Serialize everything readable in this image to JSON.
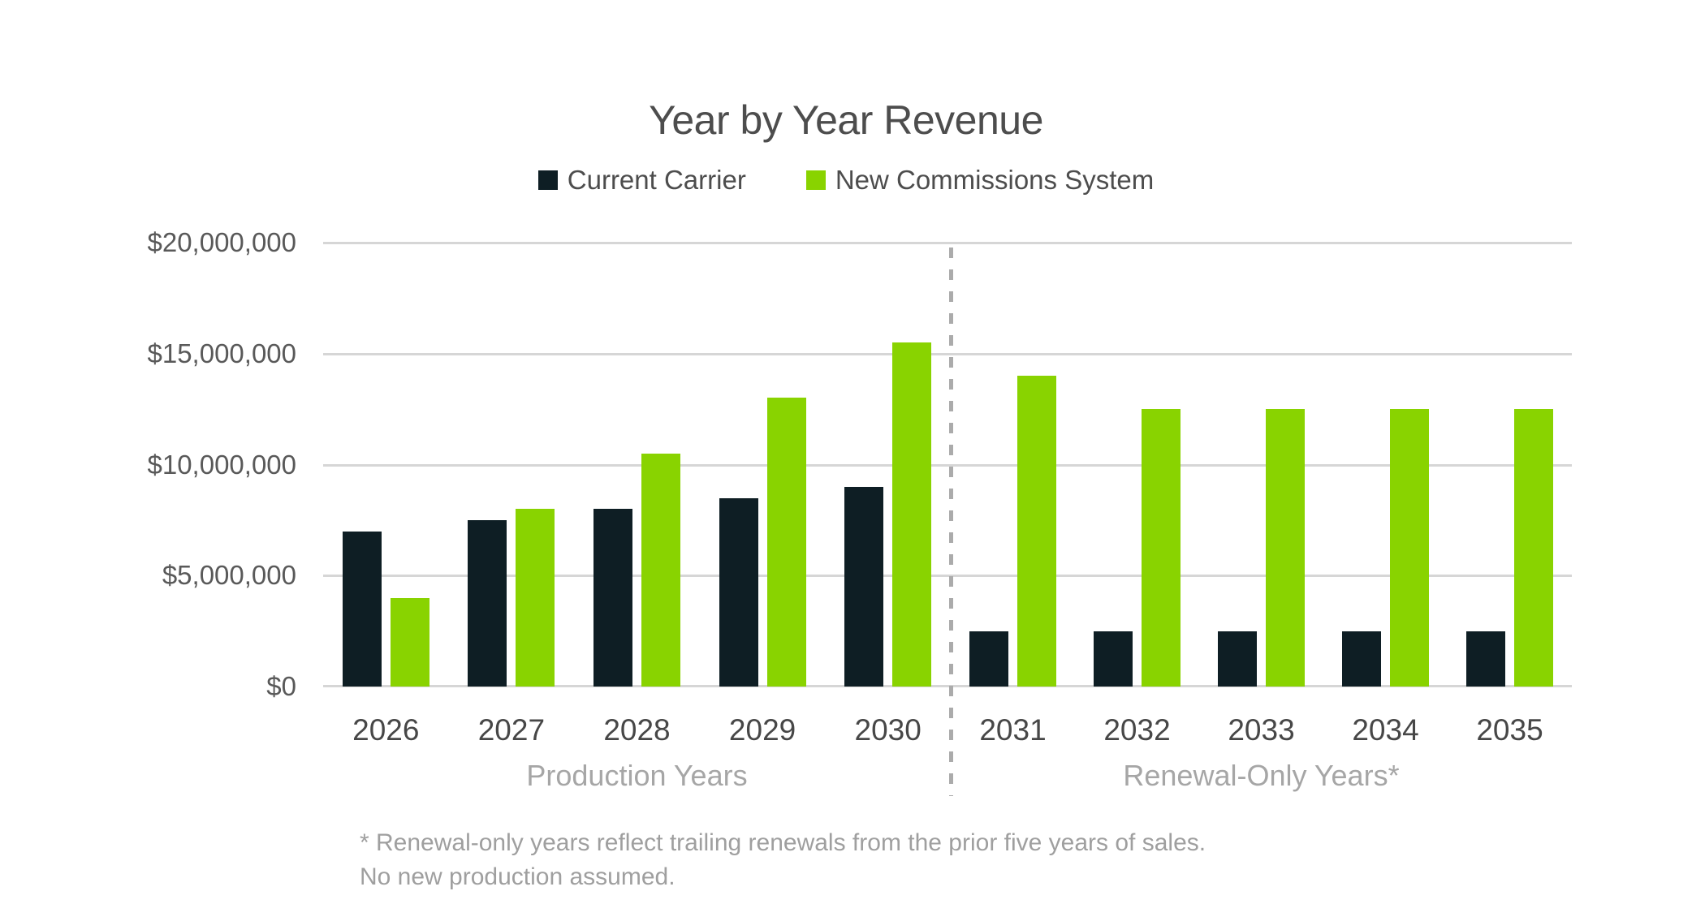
{
  "chart_data": {
    "type": "bar",
    "title": "Year by Year Revenue",
    "categories": [
      "2026",
      "2027",
      "2028",
      "2029",
      "2030",
      "2031",
      "2032",
      "2033",
      "2034",
      "2035"
    ],
    "series": [
      {
        "name": "Current Carrier",
        "color": "#0e1e24",
        "values": [
          7000000,
          7500000,
          8000000,
          8500000,
          9000000,
          2500000,
          2500000,
          2500000,
          2500000,
          2500000
        ]
      },
      {
        "name": "New Commissions System",
        "color": "#89d300",
        "values": [
          4000000,
          8000000,
          10500000,
          13000000,
          15500000,
          14000000,
          12500000,
          12500000,
          12500000,
          12500000
        ]
      }
    ],
    "ylim": [
      0,
      20000000
    ],
    "y_ticks": [
      "$20,000,000",
      "$15,000,000",
      "$10,000,000",
      "$5,000,000",
      "$0"
    ],
    "y_tick_values": [
      20000000,
      15000000,
      10000000,
      5000000,
      0
    ],
    "grid": true,
    "legend_position": "top",
    "x_groups": [
      {
        "label": "Production Years",
        "categories": [
          "2026",
          "2027",
          "2028",
          "2029",
          "2030"
        ]
      },
      {
        "label": "Renewal-Only Years*",
        "categories": [
          "2031",
          "2032",
          "2033",
          "2034",
          "2035"
        ]
      }
    ],
    "group_divider": "dashed-vertical-line-between-2030-and-2031",
    "footnote_lines": [
      "* Renewal-only years reflect trailing renewals from the prior five years of sales.",
      "No new production assumed."
    ]
  },
  "colors": {
    "background": "#ffffff",
    "bar_current_carrier": "#0e1e24",
    "bar_new_commissions": "#89d300",
    "gridline": "#d6d6d6",
    "divider": "#ababab",
    "title_text": "#4d4d4d",
    "axis_text": "#595959",
    "year_text": "#474747",
    "group_label_text": "#a6a6a6",
    "footnote_text": "#9f9f9f"
  }
}
